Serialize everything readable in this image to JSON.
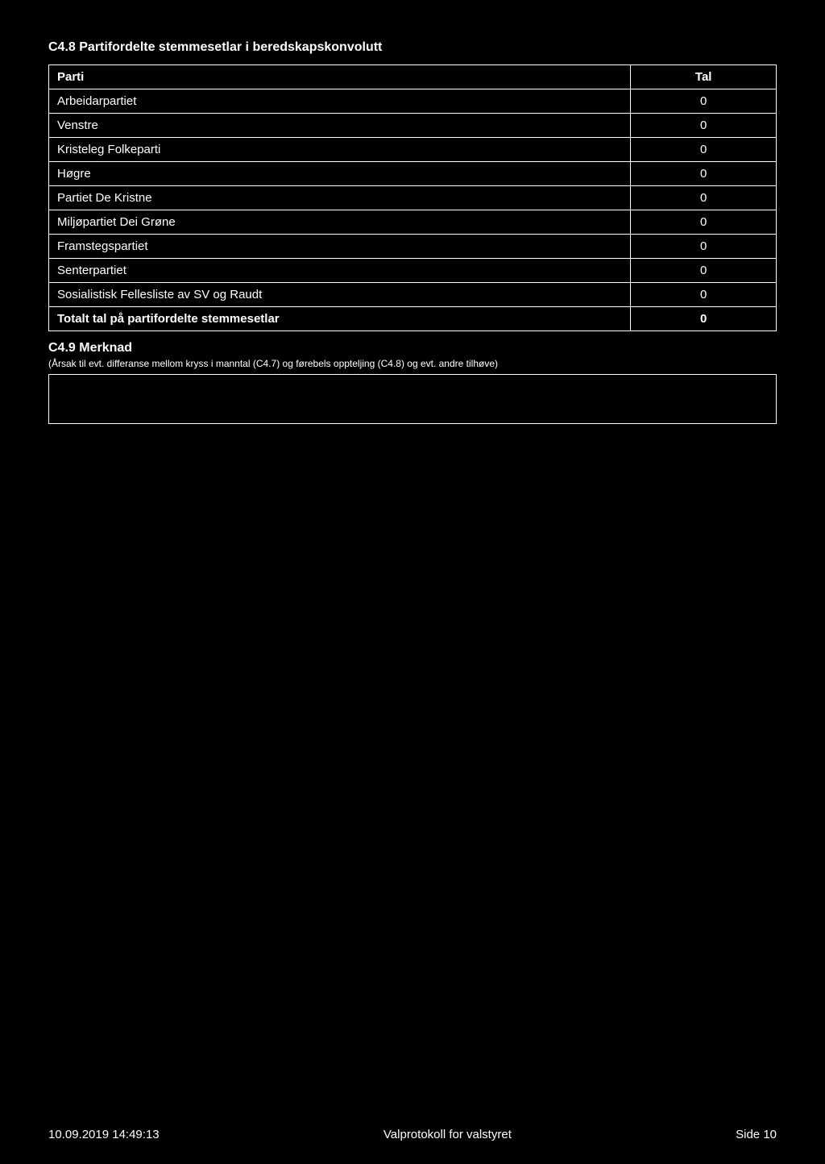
{
  "section_title": "C4.8 Partifordelte stemmesetlar i beredskapskonvolutt",
  "table": {
    "header_parti": "Parti",
    "header_tal": "Tal",
    "rows": [
      {
        "name": "Arbeidarpartiet",
        "value": "0"
      },
      {
        "name": "Venstre",
        "value": "0"
      },
      {
        "name": "Kristeleg Folkeparti",
        "value": "0"
      },
      {
        "name": "Høgre",
        "value": "0"
      },
      {
        "name": "Partiet De Kristne",
        "value": "0"
      },
      {
        "name": "Miljøpartiet Dei Grøne",
        "value": "0"
      },
      {
        "name": "Framstegspartiet",
        "value": "0"
      },
      {
        "name": "Senterpartiet",
        "value": "0"
      },
      {
        "name": "Sosialistisk Fellesliste av SV og Raudt",
        "value": "0"
      }
    ],
    "total_label": "Totalt tal på partifordelte stemmesetlar",
    "total_value": "0"
  },
  "merknad": {
    "title": "C4.9 Merknad",
    "subtitle": "(Årsak til evt. differanse mellom kryss i manntal (C4.7) og førebels oppteljing (C4.8) og evt. andre tilhøve)"
  },
  "footer": {
    "left": "10.09.2019 14:49:13",
    "center": "Valprotokoll for valstyret",
    "right": "Side 10"
  }
}
